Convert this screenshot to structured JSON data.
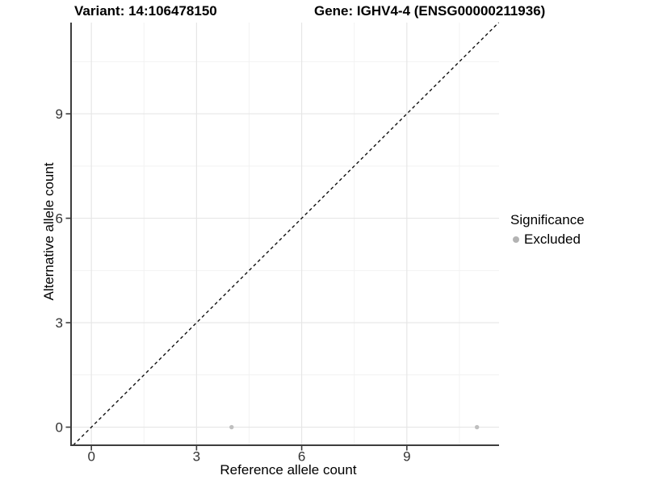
{
  "header": {
    "variant_title": "Variant: 14:106478150",
    "gene_title": "Gene: IGHV4-4 (ENSG00000211936)"
  },
  "chart_data": {
    "type": "scatter",
    "title": "Variant: 14:106478150  /  Gene: IGHV4-4 (ENSG00000211936)",
    "xlabel": "Reference allele count",
    "ylabel": "Alternative allele count",
    "xlim": [
      -0.58,
      11.63
    ],
    "ylim": [
      -0.52,
      11.62
    ],
    "x_ticks": [
      0,
      3,
      6,
      9
    ],
    "y_ticks": [
      0,
      3,
      6,
      9
    ],
    "x_minor_ticks": [
      1.5,
      4.5,
      7.5,
      10.5
    ],
    "y_minor_ticks": [
      1.5,
      4.5,
      7.5,
      10.5
    ],
    "grid": true,
    "series": [
      {
        "name": "Excluded",
        "marker": "circle",
        "color": "#bfbfbf",
        "points": [
          {
            "x": 4,
            "y": 0
          },
          {
            "x": 11,
            "y": 0
          }
        ]
      }
    ],
    "reference_line": {
      "kind": "identity y=x",
      "style": "dashed",
      "color": "#111111"
    },
    "legend": {
      "title": "Significance",
      "position": "right",
      "items": [
        {
          "label": "Excluded",
          "color": "#b3b3b3",
          "marker": "circle"
        }
      ]
    }
  },
  "colors": {
    "background": "#ffffff",
    "grid_major": "#e6e6e6",
    "grid_minor": "#f2f2f2",
    "axis_line": "#3d3d3d",
    "tick_label": "#333333",
    "point": "#bfbfbf",
    "legend_key": "#b3b3b3"
  }
}
